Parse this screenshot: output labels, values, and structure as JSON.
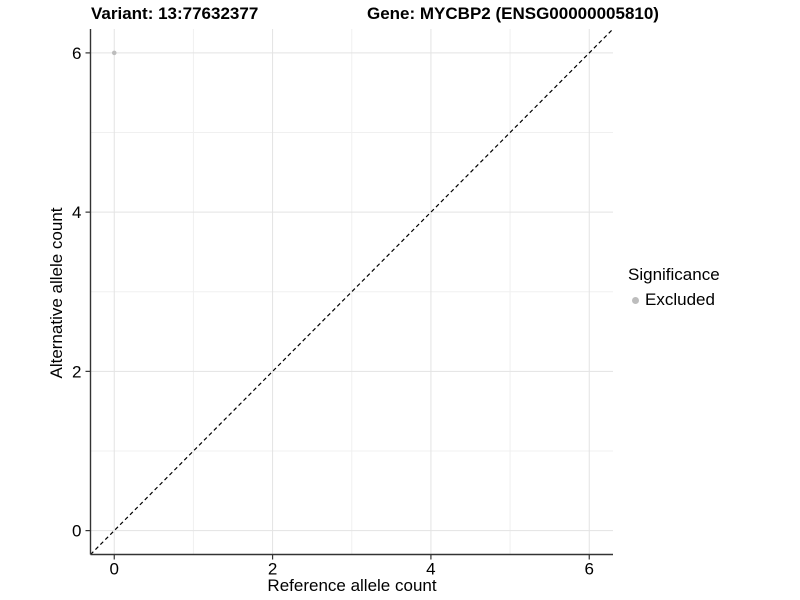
{
  "chart_data": {
    "type": "scatter",
    "titles": {
      "left": "Variant: 13:77632377",
      "right": "Gene: MYCBP2 (ENSG00000005810)"
    },
    "xlabel": "Reference allele count",
    "ylabel": "Alternative allele count",
    "xlim": [
      -0.3,
      6.3
    ],
    "ylim": [
      -0.3,
      6.3
    ],
    "x_ticks": [
      0,
      2,
      4,
      6
    ],
    "y_ticks": [
      0,
      2,
      4,
      6
    ],
    "minor_gridlines": [
      1,
      3,
      5
    ],
    "grid": "on",
    "series": [
      {
        "name": "Excluded",
        "color": "#bdbdbd",
        "point_radius": 2.3,
        "points": [
          {
            "x": 0,
            "y": 6
          }
        ]
      }
    ],
    "reference_line": {
      "kind": "identity y=x",
      "style": "dashed",
      "color": "#000000"
    },
    "legend": {
      "position": "right",
      "title": "Significance",
      "entries": [
        {
          "label": "Excluded",
          "color": "#bdbdbd"
        }
      ]
    },
    "colors": {
      "background": "#ffffff",
      "grid_major": "#e3e3e3",
      "grid_minor": "#f0f0f0",
      "axis": "#333333",
      "text": "#000000"
    }
  }
}
